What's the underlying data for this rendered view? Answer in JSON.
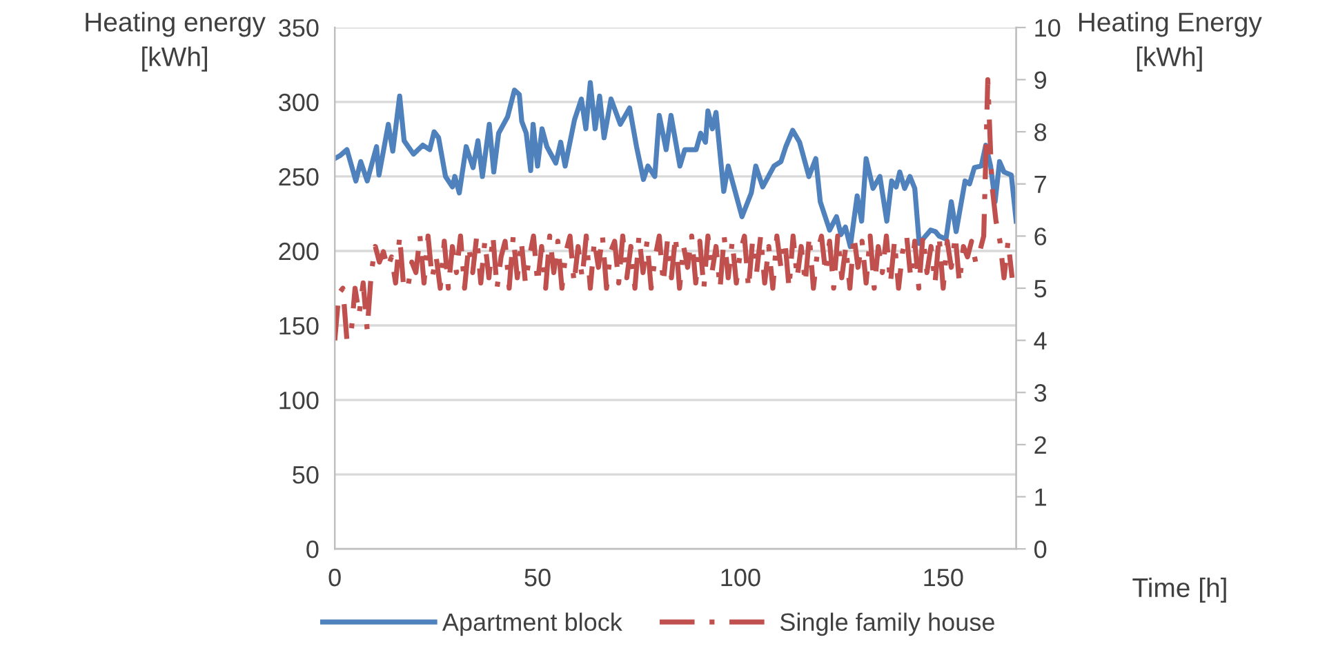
{
  "chart_data": {
    "type": "line",
    "xlabel": "Time [h]",
    "ylabel": "Heating energy\n[kWh]",
    "y2label": "Heating Energy\n[kWh]",
    "xlim": [
      0,
      168
    ],
    "xticks": [
      0,
      50,
      100,
      150
    ],
    "ylim": [
      0,
      350
    ],
    "yticks": [
      0,
      50,
      100,
      150,
      200,
      250,
      300,
      350
    ],
    "y2lim": [
      0,
      10
    ],
    "y2ticks": [
      0,
      1,
      2,
      3,
      4,
      5,
      6,
      7,
      8,
      9,
      10
    ],
    "grid": "y",
    "legend": "bottom",
    "series": [
      {
        "name": "Apartment block",
        "color": "#4f81bd",
        "line_style": "solid",
        "x": [
          0,
          1.3,
          3,
          5.2,
          6.4,
          8,
          10.3,
          10.9,
          13.2,
          14.3,
          16,
          17.1,
          19.4,
          21.7,
          23.4,
          24.5,
          25.6,
          27.3,
          29,
          29.6,
          30.7,
          32.4,
          34.1,
          35.3,
          36.4,
          38.1,
          39.2,
          40.4,
          42.6,
          44.3,
          45.5,
          46.1,
          47.2,
          48.3,
          48.9,
          50,
          51.1,
          52.3,
          54.5,
          55.7,
          56.8,
          59.1,
          60.8,
          61.9,
          63,
          64.2,
          65.3,
          66.4,
          68.1,
          70.4,
          72.7,
          74.4,
          76.1,
          77.2,
          78.9,
          80,
          81.7,
          82.9,
          85.1,
          86.3,
          89.1,
          90.2,
          91.4,
          92,
          93.1,
          94,
          95.9,
          97,
          100.4,
          102.7,
          103.8,
          105.5,
          108.3,
          110,
          111.2,
          112.9,
          114.6,
          116.9,
          118.6,
          119.7,
          122,
          123.7,
          124.8,
          125.9,
          127.1,
          128.8,
          129.9,
          131,
          132.7,
          134.4,
          136.1,
          137.3,
          138.4,
          139.3,
          140.5,
          141.8,
          143,
          144.1,
          146.9,
          148.1,
          149,
          150.7,
          152,
          153.2,
          155.4,
          156.5,
          157.7,
          159.4,
          160.5,
          161.7,
          162.8,
          163.9,
          165,
          166.8,
          168
        ],
        "values": [
          262,
          264,
          268,
          247,
          260,
          247,
          270,
          251,
          285,
          267,
          304,
          274,
          265,
          271,
          268,
          280,
          276,
          250,
          243,
          250,
          239,
          270,
          256,
          274,
          250,
          285,
          253,
          279,
          290,
          308,
          305,
          287,
          279,
          254,
          285,
          257,
          282,
          270,
          259,
          273,
          257,
          288,
          302,
          282,
          313,
          282,
          304,
          276,
          302,
          285,
          296,
          270,
          248,
          257,
          250,
          291,
          268,
          291,
          257,
          268,
          268,
          279,
          273,
          294,
          282,
          293,
          240,
          257,
          223,
          239,
          257,
          243,
          257,
          260,
          270,
          281,
          273,
          250,
          262,
          233,
          214,
          223,
          211,
          216,
          203,
          237,
          220,
          262,
          242,
          250,
          220,
          247,
          243,
          253,
          242,
          250,
          242,
          205,
          214,
          213,
          210,
          208,
          233,
          213,
          247,
          245,
          256,
          257,
          271,
          257,
          233,
          260,
          253,
          251,
          220
        ]
      },
      {
        "name": "Single family house",
        "color": "#c0504d",
        "axis": "y2",
        "line_style": "dashdot",
        "x": [
          0,
          1,
          2,
          3,
          4,
          5,
          6,
          7,
          8,
          9,
          10,
          11,
          12,
          13,
          14,
          15,
          16,
          17,
          18,
          19,
          20,
          21,
          22,
          23,
          24,
          25,
          26,
          27,
          28,
          29,
          30,
          31,
          32,
          33,
          34,
          35,
          36,
          37,
          38,
          39,
          40,
          41,
          42,
          43,
          44,
          45,
          46,
          47,
          48,
          49,
          50,
          51,
          52,
          53,
          54,
          55,
          56,
          57,
          58,
          59,
          60,
          61,
          62,
          63,
          64,
          65,
          66,
          67,
          68,
          69,
          70,
          71,
          72,
          73,
          74,
          75,
          76,
          77,
          78,
          79,
          80,
          81,
          82,
          83,
          84,
          85,
          86,
          87,
          88,
          89,
          90,
          91,
          92,
          93,
          94,
          95,
          96,
          97,
          98,
          99,
          100,
          101,
          102,
          103,
          104,
          105,
          106,
          107,
          108,
          109,
          110,
          111,
          112,
          113,
          114,
          115,
          116,
          117,
          118,
          119,
          120,
          121,
          122,
          123,
          124,
          125,
          126,
          127,
          128,
          129,
          130,
          131,
          132,
          133,
          134,
          135,
          136,
          137,
          138,
          139,
          140,
          141,
          142,
          143,
          144,
          145,
          146,
          147,
          148,
          149,
          150,
          151,
          152,
          153,
          154,
          155,
          156,
          157,
          158,
          159,
          160,
          161,
          162,
          163,
          164,
          165,
          166,
          167
        ],
        "values": [
          4.0,
          4.9,
          5.0,
          4.0,
          4.1,
          5.0,
          4.5,
          5.1,
          4.2,
          5.3,
          5.8,
          5.5,
          5.7,
          5.4,
          5.6,
          5.1,
          6.0,
          5.0,
          5.0,
          5.5,
          5.3,
          6.0,
          5.1,
          6.0,
          5.2,
          5.6,
          5.0,
          5.9,
          5.0,
          5.8,
          5.3,
          6.0,
          5.0,
          5.8,
          5.3,
          6.0,
          5.1,
          5.9,
          5.2,
          6.0,
          5.0,
          5.6,
          5.9,
          5.0,
          6.0,
          5.2,
          5.9,
          5.1,
          5.6,
          6.0,
          5.1,
          5.8,
          5.0,
          6.0,
          5.3,
          5.9,
          5.0,
          5.7,
          6.0,
          5.1,
          5.8,
          5.2,
          6.0,
          5.0,
          5.9,
          5.4,
          6.0,
          5.0,
          5.7,
          5.9,
          5.1,
          6.0,
          5.2,
          5.8,
          5.0,
          6.0,
          5.3,
          5.9,
          5.0,
          5.6,
          6.0,
          5.1,
          5.9,
          5.2,
          6.0,
          5.0,
          5.8,
          5.4,
          6.0,
          5.1,
          5.9,
          5.0,
          6.0,
          5.3,
          5.8,
          5.0,
          6.0,
          5.2,
          5.9,
          5.1,
          5.7,
          6.0,
          5.0,
          5.9,
          5.3,
          6.0,
          5.1,
          5.8,
          5.0,
          6.0,
          5.4,
          5.9,
          5.0,
          6.0,
          5.2,
          5.8,
          5.1,
          6.0,
          5.0,
          5.7,
          6.0,
          5.3,
          5.9,
          5.0,
          6.0,
          5.2,
          5.8,
          5.0,
          6.0,
          5.4,
          5.9,
          5.1,
          6.0,
          5.0,
          5.8,
          5.3,
          6.0,
          5.1,
          5.9,
          5.0,
          5.7,
          6.0,
          5.2,
          5.9,
          5.0,
          6.0,
          5.3,
          5.8,
          5.1,
          6.0,
          5.0,
          5.9,
          5.4,
          6.0,
          5.1,
          5.8,
          5.6,
          5.9,
          5.5,
          5.7,
          6.0,
          9.0,
          7.0,
          6.3,
          5.9,
          5.2,
          5.9,
          5.2
        ]
      }
    ]
  }
}
